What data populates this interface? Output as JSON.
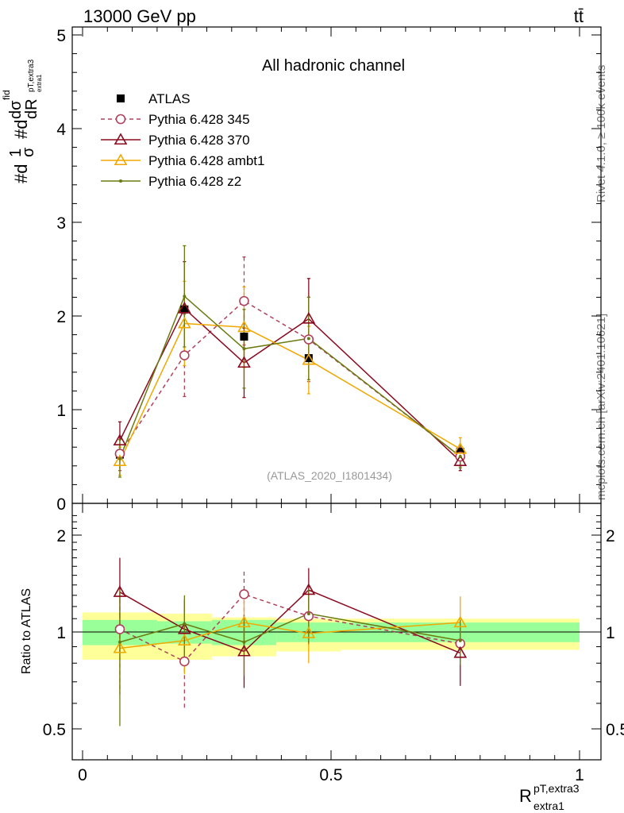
{
  "header": {
    "energy_label": "13000 GeV pp",
    "process_label": "tt̄"
  },
  "side_labels": {
    "rivet": "Rivet 4.1.0, ≥ 100k events",
    "mcplots": "mcplots.cern.ch [arXiv:2401.10621]"
  },
  "chart_data": {
    "type": "line",
    "title": "All hadronic channel",
    "analysis_id": "(ATLAS_2020_I1801434)",
    "x_label": "R_extra1^pT,extra3",
    "x_label_main": "R",
    "x_label_sup": "pT,extra3",
    "x_label_sub": "extra1",
    "y_label": "#d(1/σ)#d(dσ^fid / dR_pT,extra3/extra1)",
    "y_label_parts": [
      "#d",
      "1",
      "σ",
      "#d",
      "dσ",
      "fid",
      "dR",
      "pT,extra3",
      "extra1"
    ],
    "ratio_ylabel": "Ratio to ATLAS",
    "xlim": [
      0,
      1
    ],
    "ylim": [
      0,
      5
    ],
    "ratio_ylim": [
      0.4,
      2.4
    ],
    "x_ticks": [
      "0",
      "0.5",
      "1"
    ],
    "x_tick_values": [
      0,
      0.5,
      1
    ],
    "y_ticks": [
      "0",
      "1",
      "2",
      "3",
      "4",
      "5"
    ],
    "y_tick_values": [
      0,
      1,
      2,
      3,
      4,
      5
    ],
    "ratio_ticks": [
      "0.5",
      "1",
      "2"
    ],
    "ratio_tick_values": [
      0.5,
      1,
      2
    ],
    "bins": [
      [
        0,
        0.15
      ],
      [
        0.15,
        0.26
      ],
      [
        0.26,
        0.39
      ],
      [
        0.39,
        0.52
      ],
      [
        0.52,
        1.0
      ]
    ],
    "x": [
      0.075,
      0.205,
      0.325,
      0.455,
      0.76
    ],
    "data": {
      "name": "ATLAS",
      "values": [
        0.52,
        2.07,
        1.78,
        1.55,
        0.55
      ],
      "band_stat": [
        [
          0.91,
          1.09
        ],
        [
          0.92,
          1.08
        ],
        [
          0.91,
          1.09
        ],
        [
          0.93,
          1.07
        ],
        [
          0.93,
          1.07
        ]
      ],
      "band_total": [
        [
          0.82,
          1.15
        ],
        [
          0.82,
          1.14
        ],
        [
          0.84,
          1.11
        ],
        [
          0.87,
          1.1
        ],
        [
          0.88,
          1.1
        ]
      ]
    },
    "series": [
      {
        "name": "Pythia 6.428 345",
        "color": "#b0405b",
        "marker": "circle-open",
        "dashed": true,
        "values": [
          0.53,
          1.58,
          2.16,
          1.75,
          0.5
        ],
        "err": [
          0.18,
          0.44,
          0.47,
          0.45,
          0.1
        ],
        "ratio": [
          1.02,
          0.81,
          1.31,
          1.12,
          0.92
        ],
        "ratio_err": [
          0.38,
          0.24,
          0.23,
          0.22,
          0.1
        ]
      },
      {
        "name": "Pythia 6.428 370",
        "color": "#8b0a1f",
        "marker": "triangle-open",
        "dashed": false,
        "values": [
          0.67,
          2.08,
          1.5,
          1.97,
          0.45
        ],
        "err": [
          0.2,
          0.5,
          0.37,
          0.43,
          0.1
        ],
        "ratio": [
          1.33,
          1.02,
          0.87,
          1.35,
          0.86
        ],
        "ratio_err": [
          0.37,
          0.24,
          0.2,
          0.23,
          0.18
        ]
      },
      {
        "name": "Pythia 6.428 ambt1",
        "color": "#f0a800",
        "marker": "triangle-open",
        "dashed": false,
        "values": [
          0.45,
          1.92,
          1.88,
          1.53,
          0.58
        ],
        "err": [
          0.15,
          0.45,
          0.43,
          0.36,
          0.12
        ],
        "ratio": [
          0.89,
          0.94,
          1.07,
          0.99,
          1.07
        ],
        "ratio_err": [
          0.24,
          0.2,
          0.19,
          0.19,
          0.22
        ]
      },
      {
        "name": "Pythia 6.428 z2",
        "color": "#6b7a10",
        "marker": "dot",
        "dashed": false,
        "values": [
          0.48,
          2.21,
          1.65,
          1.76,
          0.5
        ],
        "err": [
          0.2,
          0.54,
          0.42,
          0.44,
          0.12
        ],
        "ratio": [
          0.93,
          1.06,
          0.93,
          1.14,
          0.94
        ],
        "ratio_err": [
          0.42,
          0.24,
          0.2,
          0.22,
          0.15
        ]
      }
    ],
    "legend_position": "top-left"
  }
}
